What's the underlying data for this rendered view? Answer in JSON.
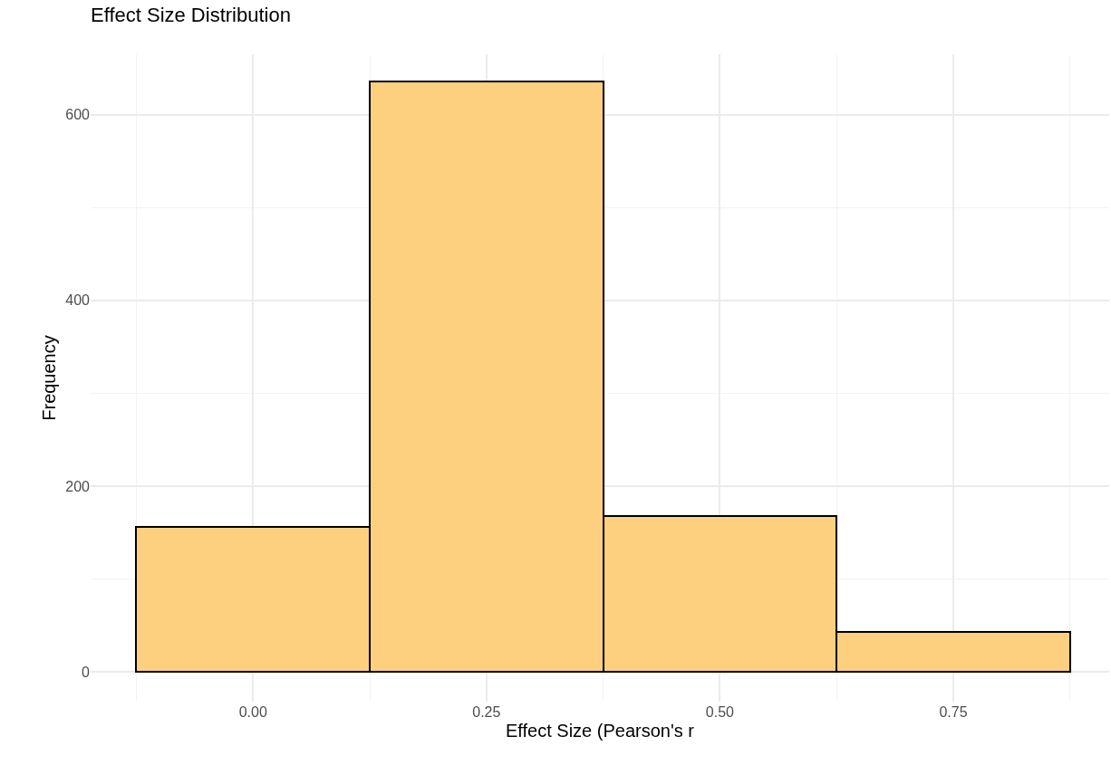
{
  "chart_data": {
    "type": "histogram",
    "title": "Effect Size Distribution",
    "xlabel": "Effect Size (Pearson's r",
    "ylabel": "Frequency",
    "bins": [
      -0.125,
      0.125,
      0.375,
      0.625,
      0.875
    ],
    "values": [
      156,
      636,
      168,
      43
    ],
    "color": "#fdd07f",
    "xlim": [
      -0.174,
      0.917
    ],
    "ylim": [
      -32,
      665
    ],
    "xticks": [
      {
        "value": 0,
        "label": "0.00"
      },
      {
        "value": 0.25,
        "label": "0.25"
      },
      {
        "value": 0.5,
        "label": "0.50"
      },
      {
        "value": 0.75,
        "label": "0.75"
      }
    ],
    "yticks": [
      0,
      200,
      400,
      600
    ],
    "grid": true
  }
}
